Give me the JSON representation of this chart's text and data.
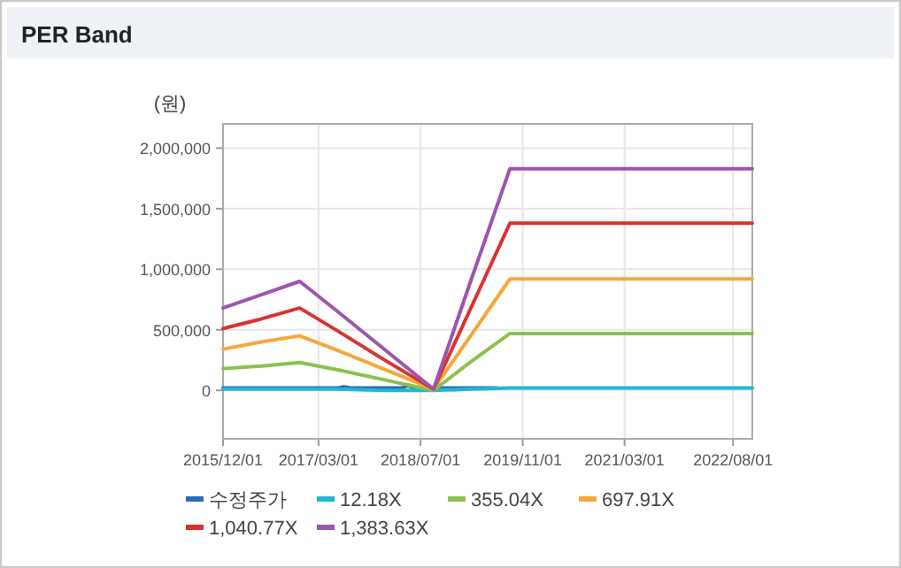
{
  "chart_data": {
    "type": "line",
    "title": "PER Band",
    "ylabel": "(원)",
    "x": [
      "2015-12-01",
      "2016-06-01",
      "2016-12-01",
      "2017-06-01",
      "2018-01-01",
      "2018-09-01",
      "2019-03-01",
      "2019-09-01",
      "2021-01-01",
      "2022-11-01"
    ],
    "series": [
      {
        "name": "수정주가",
        "color": "#2a6bb5",
        "x": [
          "2015-12-01",
          "2017-06-01",
          "2017-07-01",
          "2017-08-01",
          "2018-04-01",
          "2018-05-01",
          "2018-06-01",
          "2019-07-01"
        ],
        "values": [
          20000,
          20000,
          30000,
          20000,
          20000,
          40000,
          20000,
          20000
        ]
      },
      {
        "name": "12.18X",
        "color": "#1fb8d3",
        "values": [
          10000,
          10000,
          10000,
          10000,
          0,
          0,
          10000,
          20000,
          20000,
          20000
        ]
      },
      {
        "name": "355.04X",
        "color": "#8dc04f",
        "values": [
          180000,
          200000,
          230000,
          170000,
          90000,
          0,
          240000,
          470000,
          470000,
          470000
        ]
      },
      {
        "name": "697.91X",
        "color": "#f5a83a",
        "values": [
          340000,
          400000,
          450000,
          330000,
          180000,
          10000,
          460000,
          920000,
          920000,
          920000
        ]
      },
      {
        "name": "1,040.77X",
        "color": "#d8332f",
        "values": [
          510000,
          590000,
          680000,
          490000,
          260000,
          10000,
          690000,
          1380000,
          1380000,
          1380000
        ]
      },
      {
        "name": "1,383.63X",
        "color": "#9b55b0",
        "values": [
          680000,
          790000,
          900000,
          650000,
          350000,
          10000,
          920000,
          1830000,
          1830000,
          1830000
        ]
      }
    ],
    "xlim": [
      "2015-12-01",
      "2022-11-01"
    ],
    "ylim": [
      -400000,
      2200000
    ],
    "xticks": [
      {
        "value": "2015-12-01",
        "label": "2015/12/01"
      },
      {
        "value": "2017-03-01",
        "label": "2017/03/01"
      },
      {
        "value": "2018-07-01",
        "label": "2018/07/01"
      },
      {
        "value": "2019-11-01",
        "label": "2019/11/01"
      },
      {
        "value": "2021-03-01",
        "label": "2021/03/01"
      },
      {
        "value": "2022-08-01",
        "label": "2022/08/01"
      }
    ],
    "yticks": [
      {
        "value": 0,
        "label": "0"
      },
      {
        "value": 500000,
        "label": "500,000"
      },
      {
        "value": 1000000,
        "label": "1,000,000"
      },
      {
        "value": 1500000,
        "label": "1,500,000"
      },
      {
        "value": 2000000,
        "label": "2,000,000"
      }
    ],
    "grid": true,
    "legend": "bottom"
  }
}
